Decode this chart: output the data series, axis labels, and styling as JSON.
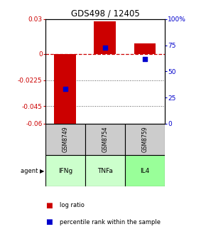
{
  "title": "GDS498 / 12405",
  "samples": [
    "GSM8749",
    "GSM8754",
    "GSM8759"
  ],
  "agents": [
    "IFNg",
    "TNFa",
    "IL4"
  ],
  "log_ratios": [
    -0.063,
    0.028,
    0.009
  ],
  "percentile_ranks": [
    33,
    73,
    62
  ],
  "ylim_left": [
    -0.06,
    0.03
  ],
  "ylim_right": [
    0,
    100
  ],
  "yticks_left": [
    0.03,
    0,
    -0.0225,
    -0.045,
    -0.06
  ],
  "yticks_right": [
    100,
    75,
    50,
    25,
    0
  ],
  "ytick_labels_left": [
    "0.03",
    "0",
    "-0.0225",
    "-0.045",
    "-0.06"
  ],
  "ytick_labels_right": [
    "100%",
    "75",
    "50",
    "25",
    "0"
  ],
  "bar_color_red": "#cc0000",
  "bar_color_blue": "#0000cc",
  "agent_colors": [
    "#ccffcc",
    "#ccffcc",
    "#99ff99"
  ],
  "sample_bg": "#cccccc",
  "zero_line_color": "#cc0000",
  "dotted_line_color": "#555555",
  "left_tick_color": "#cc0000",
  "right_tick_color": "#0000cc",
  "bar_width": 0.55
}
